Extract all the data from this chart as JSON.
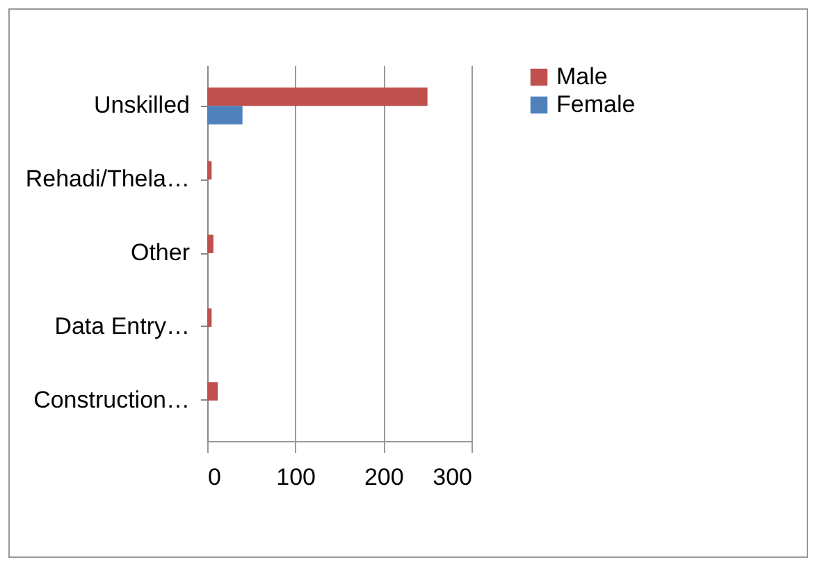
{
  "chart_data": {
    "type": "bar",
    "orientation": "horizontal",
    "categories": [
      "Unskilled",
      "Rehadi/Thela…",
      "Other",
      "Data Entry…",
      "Construction…"
    ],
    "series": [
      {
        "name": "Male",
        "color": "#c0504d",
        "values": [
          250,
          5,
          7,
          5,
          12
        ]
      },
      {
        "name": "Female",
        "color": "#4f81bd",
        "values": [
          40,
          0,
          0,
          0,
          0
        ]
      }
    ],
    "xlim": [
      0,
      300
    ],
    "xticks": [
      0,
      100,
      200,
      300
    ],
    "grid": "x",
    "legend": "right"
  }
}
